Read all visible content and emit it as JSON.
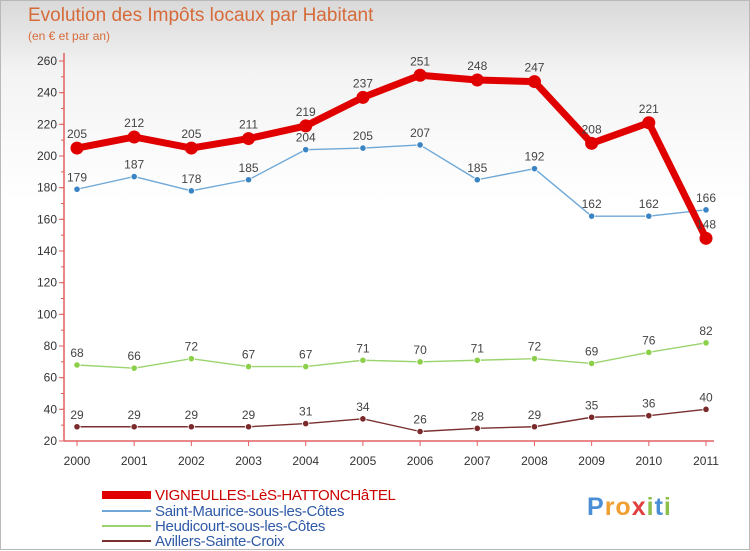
{
  "title": "Evolution des Impôts locaux par Habitant",
  "subtitle": "(en € et par an)",
  "logo": [
    "P",
    "r",
    "o",
    "x",
    "i",
    "t",
    "i"
  ],
  "logo_colors": [
    "#4a8fd6",
    "#f0a030",
    "#f0a030",
    "#e04040",
    "#8cc04a",
    "#4a8fd6",
    "#8cc04a"
  ],
  "chart_data": {
    "type": "line",
    "title": "Evolution des Impôts locaux par Habitant",
    "ylabel": "(en € et par an)",
    "categories": [
      "2000",
      "2001",
      "2002",
      "2003",
      "2004",
      "2005",
      "2006",
      "2007",
      "2008",
      "2009",
      "2010",
      "2011"
    ],
    "ylim": [
      20,
      260
    ],
    "yticks": [
      20,
      40,
      60,
      80,
      100,
      120,
      140,
      160,
      180,
      200,
      220,
      240,
      260
    ],
    "grid": false,
    "legend_position": "bottom-left",
    "series": [
      {
        "name": "VIGNEULLES-LèS-HATTONCHâTEL",
        "color": "#e00000",
        "thick": true,
        "marker": "#e00000",
        "values": [
          205,
          212,
          205,
          211,
          219,
          237,
          251,
          248,
          247,
          208,
          221,
          148
        ]
      },
      {
        "name": "Saint-Maurice-sous-les-Côtes",
        "color": "#6fa8d6",
        "thick": false,
        "marker": "#3b84c4",
        "values": [
          179,
          187,
          178,
          185,
          204,
          205,
          207,
          185,
          192,
          162,
          162,
          166
        ]
      },
      {
        "name": "Heudicourt-sous-les-Côtes",
        "color": "#9bd46e",
        "thick": false,
        "marker": "#8cd04a",
        "values": [
          68,
          66,
          72,
          67,
          67,
          71,
          70,
          71,
          72,
          69,
          76,
          82
        ]
      },
      {
        "name": "Avillers-Sainte-Croix",
        "color": "#7a3030",
        "thick": false,
        "marker": "#7a2a2a",
        "values": [
          29,
          29,
          29,
          29,
          31,
          34,
          26,
          28,
          29,
          35,
          36,
          40
        ]
      }
    ]
  }
}
